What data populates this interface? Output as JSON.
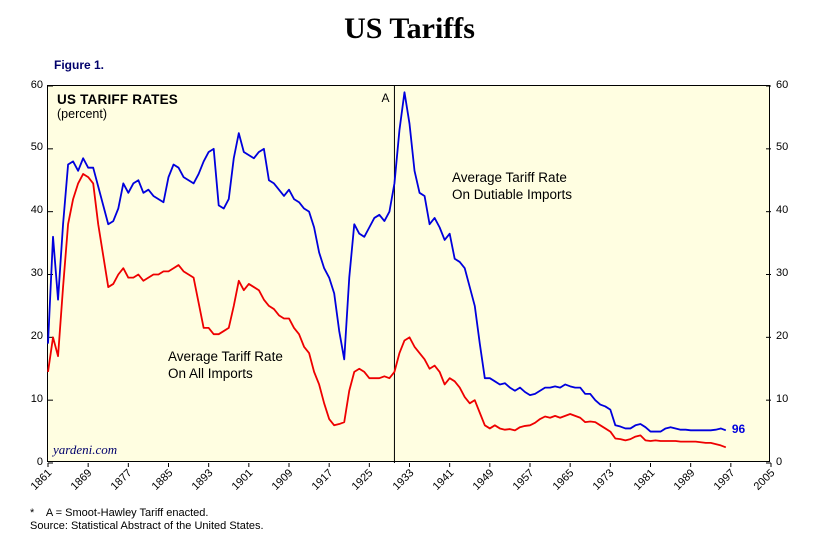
{
  "page": {
    "title": "US Tariffs",
    "figure_label": "Figure 1.",
    "footnote_line1": "*    A = Smoot-Hawley Tariff enacted.",
    "footnote_line2": "Source: Statistical Abstract of the United States."
  },
  "chart_data": {
    "type": "line",
    "title": "US Tariffs",
    "inner_title": "US TARIFF RATES",
    "inner_subtitle": "(percent)",
    "xlim": [
      1861,
      2005
    ],
    "ylim": [
      0,
      60
    ],
    "y_ticks": [
      0,
      10,
      20,
      30,
      40,
      50,
      60
    ],
    "x_ticks": [
      1861,
      1869,
      1877,
      1885,
      1893,
      1901,
      1909,
      1917,
      1925,
      1933,
      1941,
      1949,
      1957,
      1965,
      1973,
      1981,
      1989,
      1997,
      2005
    ],
    "grid": "off",
    "legend": "in-plot text annotations",
    "plot_bg": "#fffee1",
    "event": {
      "year": 1930,
      "label": "A",
      "meaning": "Smoot-Hawley Tariff enacted"
    },
    "annotations": {
      "inner_title": "US TARIFF RATES",
      "inner_subtitle": "(percent)",
      "dutiable_label_line1": "Average Tariff Rate",
      "dutiable_label_line2": "On Dutiable Imports",
      "all_label_line1": "Average Tariff Rate",
      "all_label_line2": "On All Imports",
      "event_label": "A",
      "end_label": "96",
      "watermark": "yardeni.com"
    },
    "series": [
      {
        "name": "Average Tariff Rate On Dutiable Imports",
        "data_name": "dutiable-imports-line",
        "color": "#0000dd",
        "x_start": 1861,
        "values": [
          19,
          36,
          26,
          38,
          47.5,
          48,
          46.5,
          48.5,
          47,
          47,
          44,
          41,
          38,
          38.5,
          40.5,
          44.5,
          43,
          44.5,
          45,
          43,
          43.5,
          42.5,
          42,
          41.5,
          45.5,
          47.5,
          47,
          45.5,
          45,
          44.5,
          46,
          48,
          49.5,
          50,
          41,
          40.5,
          42,
          48.5,
          52.5,
          49.5,
          49,
          48.5,
          49.5,
          50,
          45,
          44.5,
          43.5,
          42.5,
          43.5,
          42,
          41.5,
          40.5,
          40,
          37.5,
          33.5,
          31,
          29.5,
          27,
          21,
          16.5,
          29.5,
          38,
          36.5,
          36,
          37.5,
          39,
          39.5,
          38.5,
          40,
          44.5,
          53,
          59,
          54,
          46.5,
          43,
          42.5,
          38,
          39,
          37.5,
          35.5,
          36.5,
          32.5,
          32,
          31,
          28,
          25,
          19,
          13.5,
          13.5,
          13,
          12.5,
          12.7,
          12,
          11.5,
          12,
          11.3,
          10.8,
          11,
          11.5,
          12,
          12,
          12.2,
          12,
          12.5,
          12.2,
          12,
          12,
          11,
          11,
          10,
          9.3,
          9,
          8.5,
          6,
          5.8,
          5.5,
          5.5,
          6,
          6.2,
          5.7,
          5,
          5,
          5,
          5.5,
          5.7,
          5.5,
          5.3,
          5.3,
          5.2,
          5.2,
          5.2,
          5.2,
          5.2,
          5.3,
          5.5,
          5.2
        ]
      },
      {
        "name": "Average Tariff Rate On All Imports",
        "data_name": "all-imports-line",
        "color": "#ee0000",
        "x_start": 1861,
        "values": [
          14.5,
          20,
          17,
          28,
          38,
          42,
          44.5,
          46,
          45.5,
          44.5,
          38,
          33,
          28,
          28.5,
          30,
          31,
          29.5,
          29.5,
          30,
          29,
          29.5,
          30,
          30,
          30.5,
          30.5,
          31,
          31.5,
          30.5,
          30,
          29.5,
          25.5,
          21.5,
          21.5,
          20.5,
          20.5,
          21,
          21.5,
          25,
          29,
          27.5,
          28.5,
          28,
          27.5,
          26,
          25,
          24.5,
          23.5,
          23,
          23,
          21.5,
          20.5,
          18.5,
          17.5,
          14.5,
          12.5,
          9.5,
          7,
          6,
          6.2,
          6.5,
          11.5,
          14.5,
          15,
          14.5,
          13.5,
          13.5,
          13.5,
          13.8,
          13.5,
          14.5,
          17.5,
          19.5,
          20,
          18.5,
          17.5,
          16.5,
          15,
          15.5,
          14.5,
          12.5,
          13.5,
          13,
          12,
          10.5,
          9.5,
          10,
          8,
          6,
          5.5,
          6,
          5.5,
          5.3,
          5.4,
          5.2,
          5.7,
          5.9,
          6,
          6.4,
          7,
          7.4,
          7.2,
          7.5,
          7.2,
          7.5,
          7.8,
          7.5,
          7.2,
          6.5,
          6.6,
          6.5,
          6,
          5.5,
          5,
          3.9,
          3.8,
          3.6,
          3.8,
          4.2,
          4.4,
          3.6,
          3.5,
          3.6,
          3.5,
          3.5,
          3.5,
          3.5,
          3.4,
          3.4,
          3.4,
          3.4,
          3.3,
          3.2,
          3.2,
          3,
          2.8,
          2.5
        ]
      }
    ]
  }
}
